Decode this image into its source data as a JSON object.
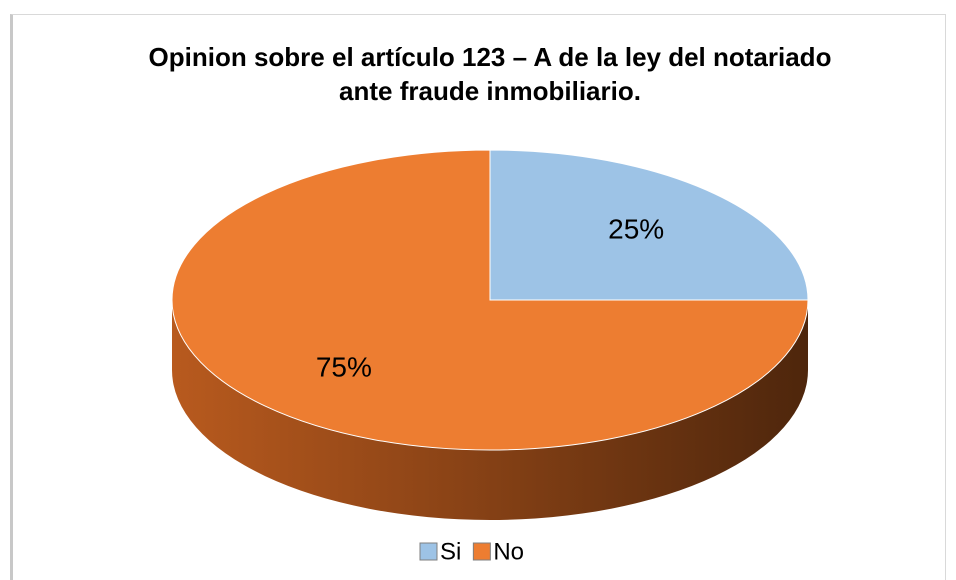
{
  "chart_data": {
    "type": "pie",
    "title": "Opinion sobre el artículo 123 – A de la ley del notariado ante fraude inmobiliario.",
    "categories": [
      "Si",
      "No"
    ],
    "values": [
      25,
      75
    ],
    "value_labels": [
      "25%",
      "75%"
    ],
    "colors": [
      "#9dc3e6",
      "#ed7d31"
    ],
    "legend": "bottom"
  }
}
